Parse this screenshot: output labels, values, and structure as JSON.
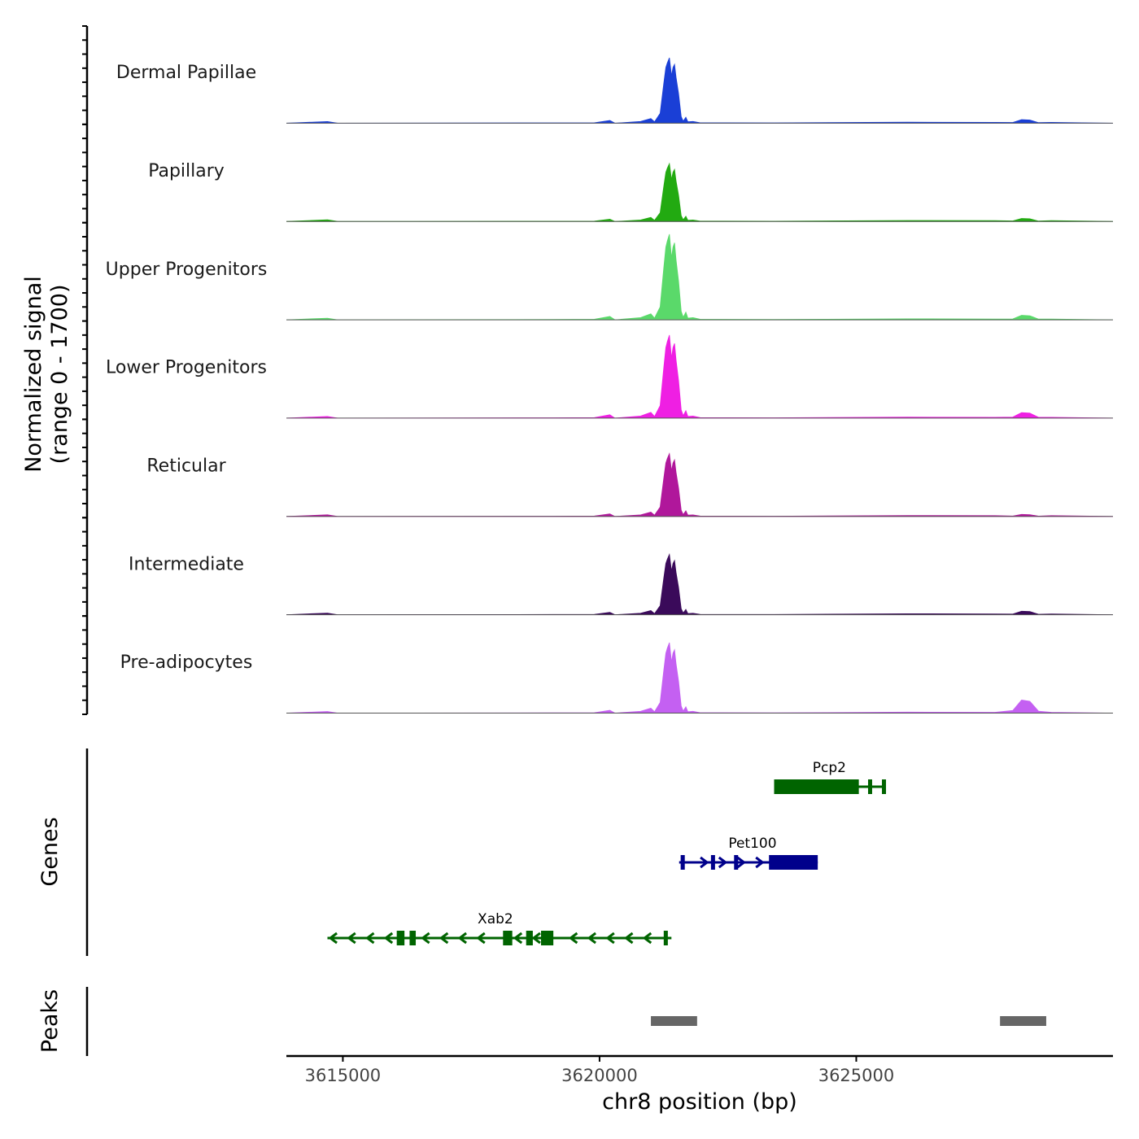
{
  "chart_data": {
    "type": "area",
    "title": "",
    "xlabel": "chr8 position (bp)",
    "xlim": [
      3613900,
      3630000
    ],
    "x_ticks": [
      3615000,
      3620000,
      3625000
    ],
    "x_tick_labels": [
      "3615000",
      "3620000",
      "3625000"
    ],
    "coverage_ylabel": [
      "Normalized signal",
      "(range 0 - 1700)"
    ],
    "ylim": [
      0,
      1700
    ],
    "tracks": [
      {
        "name": "Dermal Papillae",
        "color": "#1a3fd6",
        "peak_height": 1300,
        "secondary_height": 70
      },
      {
        "name": "Papillary",
        "color": "#22aa11",
        "peak_height": 1150,
        "secondary_height": 60
      },
      {
        "name": "Upper Progenitors",
        "color": "#5ad96a",
        "peak_height": 1700,
        "secondary_height": 90
      },
      {
        "name": "Lower Progenitors",
        "color": "#ef1fe3",
        "peak_height": 1650,
        "secondary_height": 110
      },
      {
        "name": "Reticular",
        "color": "#b0179b",
        "peak_height": 1250,
        "secondary_height": 40
      },
      {
        "name": "Intermediate",
        "color": "#3a0a5a",
        "peak_height": 1200,
        "secondary_height": 70
      },
      {
        "name": "Pre-adipocytes",
        "color": "#c460f2",
        "peak_height": 1400,
        "secondary_height": 260
      }
    ],
    "peak_center": 3621400,
    "secondary_peak_center": 3628300,
    "genes_label": "Genes",
    "genes": [
      {
        "name": "Pcp2",
        "strand": "-",
        "start": 3623400,
        "end": 3625550,
        "color": "#006400",
        "exons": [
          [
            3623400,
            3625050
          ],
          [
            3625230,
            3625290
          ],
          [
            3625500,
            3625550
          ]
        ]
      },
      {
        "name": "Pet100",
        "strand": "+",
        "start": 3621550,
        "end": 3624250,
        "color": "#00008b",
        "exons": [
          [
            3621580,
            3621660
          ],
          [
            3622170,
            3622230
          ],
          [
            3622620,
            3622650
          ],
          [
            3623300,
            3624250
          ]
        ]
      },
      {
        "name": "Xab2",
        "strand": "-",
        "start": 3614700,
        "end": 3621400,
        "color": "#006400",
        "exons": [
          [
            3616050,
            3616200
          ],
          [
            3616300,
            3616420
          ],
          [
            3618120,
            3618300
          ],
          [
            3618570,
            3618700
          ],
          [
            3618860,
            3619100
          ],
          [
            3621250,
            3621330
          ]
        ]
      }
    ],
    "peaks_label": "Peaks",
    "peaks_color": "#666666",
    "peaks": [
      [
        3621000,
        3621900
      ],
      [
        3627800,
        3628700
      ]
    ]
  }
}
